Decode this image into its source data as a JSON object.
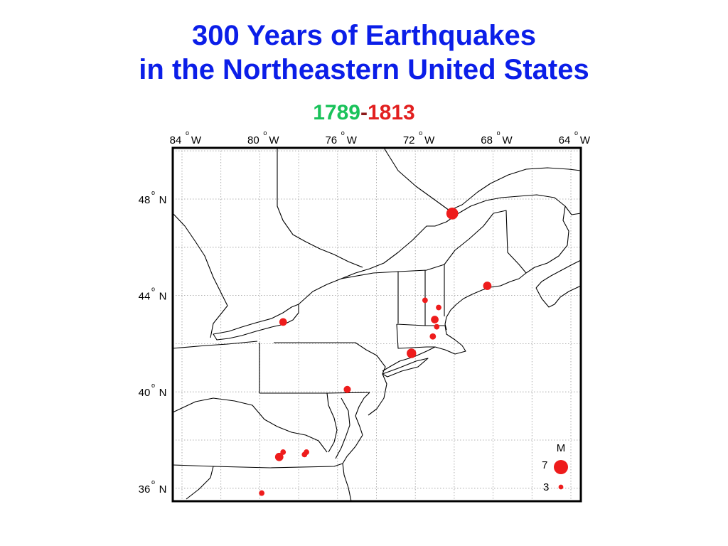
{
  "title": {
    "line1": "300 Years of Earthquakes",
    "line2": "in the Northeastern United States"
  },
  "years": {
    "start": "1789",
    "separator": "-",
    "end": "1813",
    "start_color": "#19c25a",
    "separator_color": "#8b1a1a",
    "end_color": "#e21f1f"
  },
  "colors": {
    "title": "#0b1ee8",
    "quake": "#ee1c1c",
    "grid": "#9a9a9a",
    "border": "#000000"
  },
  "longitude_labels": [
    {
      "deg": "84",
      "hem": "W"
    },
    {
      "deg": "80",
      "hem": "W"
    },
    {
      "deg": "76",
      "hem": "W"
    },
    {
      "deg": "72",
      "hem": "W"
    },
    {
      "deg": "68",
      "hem": "W"
    },
    {
      "deg": "64",
      "hem": "W"
    }
  ],
  "latitude_labels": [
    {
      "deg": "48",
      "hem": "N"
    },
    {
      "deg": "44",
      "hem": "N"
    },
    {
      "deg": "40",
      "hem": "N"
    },
    {
      "deg": "36",
      "hem": "N"
    }
  ],
  "degree_symbol": "o",
  "earthquakes": [
    {
      "lon": -70.1,
      "lat": 47.4,
      "mag": 6.0
    },
    {
      "lon": -68.3,
      "lat": 44.4,
      "mag": 4.5
    },
    {
      "lon": -71.5,
      "lat": 43.8,
      "mag": 3.3
    },
    {
      "lon": -70.8,
      "lat": 43.5,
      "mag": 3.3
    },
    {
      "lon": -71.0,
      "lat": 43.0,
      "mag": 4.2
    },
    {
      "lon": -70.9,
      "lat": 42.7,
      "mag": 3.3
    },
    {
      "lon": -71.1,
      "lat": 42.3,
      "mag": 3.6
    },
    {
      "lon": -72.2,
      "lat": 41.6,
      "mag": 5.0
    },
    {
      "lon": -78.8,
      "lat": 42.9,
      "mag": 4.2
    },
    {
      "lon": -75.5,
      "lat": 40.1,
      "mag": 4.0
    },
    {
      "lon": -79.0,
      "lat": 37.3,
      "mag": 4.5
    },
    {
      "lon": -78.8,
      "lat": 37.5,
      "mag": 3.3
    },
    {
      "lon": -77.7,
      "lat": 37.4,
      "mag": 3.3
    },
    {
      "lon": -77.6,
      "lat": 37.5,
      "mag": 3.3
    },
    {
      "lon": -79.9,
      "lat": 35.8,
      "mag": 3.3
    }
  ],
  "legend": {
    "title": "M",
    "entries": [
      {
        "label": "7",
        "mag": 7
      },
      {
        "label": "3",
        "mag": 3
      }
    ]
  }
}
